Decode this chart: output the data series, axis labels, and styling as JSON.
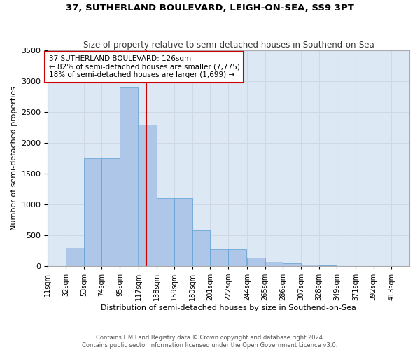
{
  "title": "37, SUTHERLAND BOULEVARD, LEIGH-ON-SEA, SS9 3PT",
  "subtitle": "Size of property relative to semi-detached houses in Southend-on-Sea",
  "xlabel": "Distribution of semi-detached houses by size in Southend-on-Sea",
  "ylabel": "Number of semi-detached properties",
  "footer1": "Contains HM Land Registry data © Crown copyright and database right 2024.",
  "footer2": "Contains public sector information licensed under the Open Government Licence v3.0.",
  "annotation_title": "37 SUTHERLAND BOULEVARD: 126sqm",
  "annotation_line1": "← 82% of semi-detached houses are smaller (7,775)",
  "annotation_line2": "18% of semi-detached houses are larger (1,699) →",
  "property_size": 126,
  "bin_edges": [
    11,
    32,
    53,
    74,
    95,
    117,
    138,
    159,
    180,
    201,
    222,
    244,
    265,
    286,
    307,
    328,
    349,
    371,
    392,
    413,
    434
  ],
  "bar_heights": [
    5,
    300,
    1750,
    1750,
    2900,
    2300,
    1100,
    1100,
    580,
    280,
    280,
    140,
    70,
    50,
    30,
    10,
    5,
    2,
    1,
    1
  ],
  "bar_color": "#aec6e8",
  "bar_edge_color": "#5a9fd4",
  "line_color": "#cc0000",
  "annotation_box_color": "#cc0000",
  "grid_color": "#d0d8e8",
  "background_color": "#dde8f5",
  "ylim": [
    0,
    3500
  ],
  "yticks": [
    0,
    500,
    1000,
    1500,
    2000,
    2500,
    3000,
    3500
  ],
  "figwidth": 6.0,
  "figheight": 5.0,
  "dpi": 100
}
